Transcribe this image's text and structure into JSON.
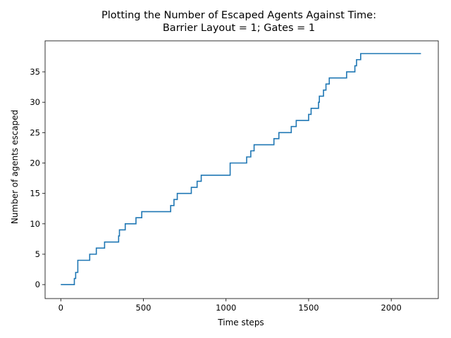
{
  "chart_data": {
    "type": "line",
    "title_lines": [
      "Plotting the Number of Escaped Agents Against Time:",
      "Barrier Layout = 1; Gates = 1"
    ],
    "xlabel": "Time steps",
    "ylabel": "Number of agents escaped",
    "xlim": [
      -95,
      2285
    ],
    "ylim": [
      -2.3,
      40.1
    ],
    "xticks": [
      0,
      500,
      1000,
      1500,
      2000
    ],
    "yticks": [
      0,
      5,
      10,
      15,
      20,
      25,
      30,
      35
    ],
    "grid": false,
    "series": [
      {
        "color": "#1f77b4",
        "step": true,
        "points": [
          [
            0,
            0
          ],
          [
            82,
            1
          ],
          [
            90,
            2
          ],
          [
            103,
            4
          ],
          [
            175,
            5
          ],
          [
            215,
            6
          ],
          [
            265,
            7
          ],
          [
            350,
            8
          ],
          [
            355,
            9
          ],
          [
            390,
            10
          ],
          [
            455,
            11
          ],
          [
            490,
            12
          ],
          [
            665,
            13
          ],
          [
            685,
            14
          ],
          [
            705,
            15
          ],
          [
            790,
            16
          ],
          [
            825,
            17
          ],
          [
            850,
            18
          ],
          [
            1025,
            20
          ],
          [
            1125,
            21
          ],
          [
            1150,
            22
          ],
          [
            1170,
            23
          ],
          [
            1290,
            24
          ],
          [
            1320,
            25
          ],
          [
            1395,
            26
          ],
          [
            1425,
            27
          ],
          [
            1500,
            28
          ],
          [
            1515,
            29
          ],
          [
            1560,
            30
          ],
          [
            1565,
            31
          ],
          [
            1590,
            32
          ],
          [
            1605,
            33
          ],
          [
            1625,
            34
          ],
          [
            1730,
            35
          ],
          [
            1780,
            36
          ],
          [
            1790,
            37
          ],
          [
            1815,
            38
          ],
          [
            2180,
            38
          ]
        ]
      }
    ]
  }
}
